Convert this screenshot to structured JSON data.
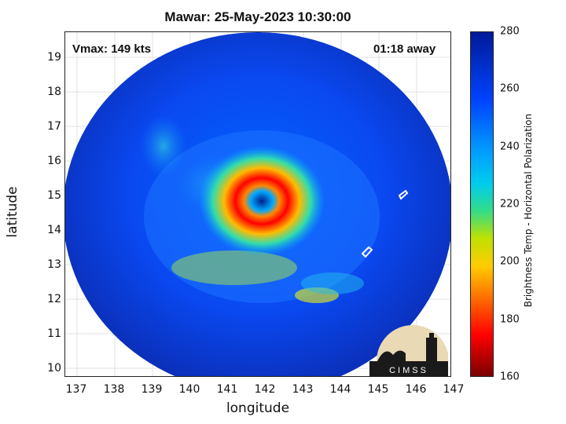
{
  "title": "Mawar: 25-May-2023 10:30:00",
  "vmax_label": "Vmax: 149 kts",
  "time_away_label": "01:18 away",
  "axes": {
    "xlabel": "longitude",
    "ylabel": "latitude",
    "xticks": [
      "137",
      "138",
      "139",
      "140",
      "141",
      "142",
      "143",
      "144",
      "145",
      "146",
      "147"
    ],
    "yticks": [
      "10",
      "11",
      "12",
      "13",
      "14",
      "15",
      "16",
      "17",
      "18",
      "19"
    ]
  },
  "colorbar": {
    "label": "Brightness Temp - Horizontal Polarization",
    "ticks": [
      "160",
      "180",
      "200",
      "220",
      "240",
      "260",
      "280"
    ],
    "colors": {
      "min": "#7a0000",
      "low": "#ff0000",
      "mid": "#ffcc00",
      "high": "#00ccee",
      "max": "#001a99"
    }
  },
  "logo": {
    "text": "CIMSS"
  },
  "map_extent": {
    "lon": [
      136.7,
      147.0
    ],
    "lat": [
      9.75,
      19.75
    ]
  }
}
